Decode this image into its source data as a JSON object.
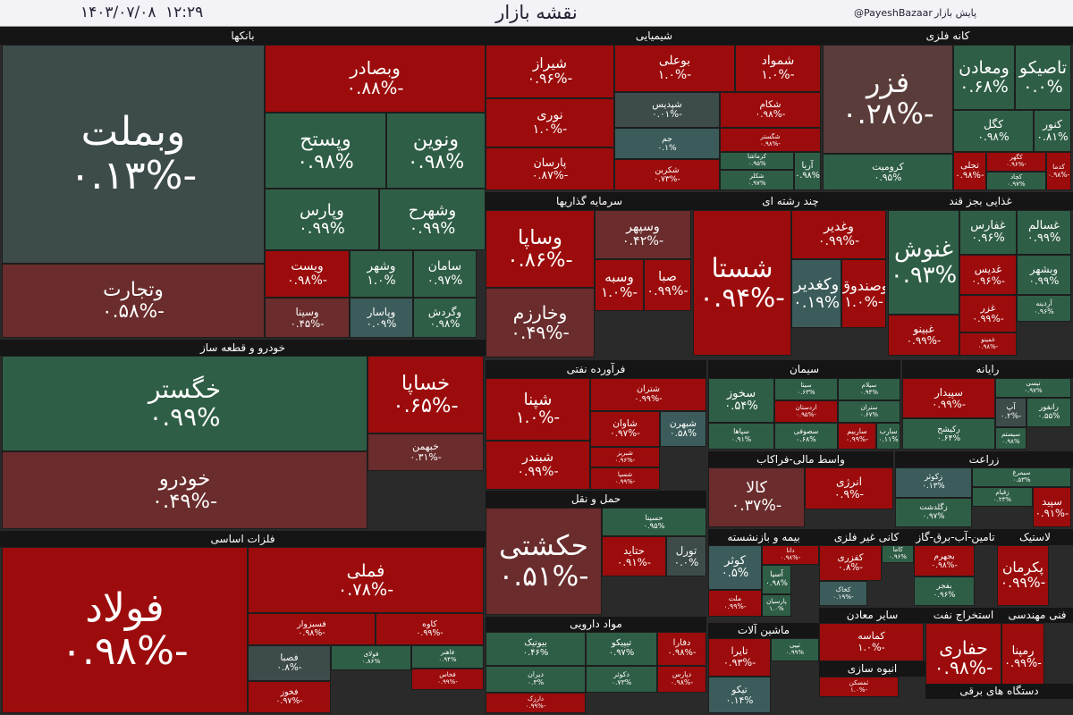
{
  "header": {
    "date": "۱۴۰۳/۰۷/۰۸",
    "time": "۱۲:۲۹",
    "title": "نقشه بازار",
    "handle": "@PayeshBazaar",
    "brand": "پایش بازار"
  },
  "sectors": [
    {
      "name": "بانکها",
      "tiles": [
        {
          "symbol": "وبملت",
          "change": "-۰.۱۳%"
        },
        {
          "symbol": "وتجارت",
          "change": "-۰.۵۸%"
        },
        {
          "symbol": "وبصادر",
          "change": "-۰.۸۸%"
        },
        {
          "symbol": "وپستح",
          "change": "۰.۹۸%"
        },
        {
          "symbol": "ونوین",
          "change": "۰.۹۸%"
        },
        {
          "symbol": "وپارس",
          "change": "۰.۹۹%"
        },
        {
          "symbol": "وشهرح",
          "change": "۰.۹۹%"
        },
        {
          "symbol": "ویست",
          "change": "-۰.۹۸%"
        },
        {
          "symbol": "وسینا",
          "change": "-۰.۴۵%"
        },
        {
          "symbol": "وشهر",
          "change": "۱.۰%"
        },
        {
          "symbol": "وپاسار",
          "change": "۰.۰۹%"
        },
        {
          "symbol": "سامان",
          "change": "۰.۹۷%"
        },
        {
          "symbol": "وگردش",
          "change": "۰.۹۸%"
        }
      ]
    },
    {
      "name": "شیمیایی",
      "tiles": [
        {
          "symbol": "شیراز",
          "change": "-۰.۹۶%"
        },
        {
          "symbol": "نوری",
          "change": "-۱.۰%"
        },
        {
          "symbol": "پارسان",
          "change": "-۰.۸۷%"
        },
        {
          "symbol": "بوعلی",
          "change": "-۱.۰%"
        },
        {
          "symbol": "شمواد",
          "change": "-۱.۰%"
        },
        {
          "symbol": "شپدیس",
          "change": "-۰.۰۱%"
        },
        {
          "symbol": "جم",
          "change": "۰.۱%"
        },
        {
          "symbol": "شکربن",
          "change": "-۰.۷۳%"
        },
        {
          "symbol": "شکام",
          "change": "-۰.۹۸%"
        },
        {
          "symbol": "شگستر",
          "change": "-۰.۹۸%"
        },
        {
          "symbol": "کرماشا",
          "change": "۰.۹۵%"
        },
        {
          "symbol": "شکلر",
          "change": "۰.۹۷%"
        },
        {
          "symbol": "آریا",
          "change": "۰.۹۸%"
        }
      ]
    },
    {
      "name": "کانه فلزی",
      "tiles": [
        {
          "symbol": "فزر",
          "change": "-۰.۲۸%"
        },
        {
          "symbol": "کرومیت",
          "change": "۰.۹۵%"
        },
        {
          "symbol": "ومعادن",
          "change": "۰.۶۸%"
        },
        {
          "symbol": "تاصیکو",
          "change": "۰.۰%"
        },
        {
          "symbol": "کگل",
          "change": "۰.۹۸%"
        },
        {
          "symbol": "کنور",
          "change": "۰.۸۱%"
        },
        {
          "symbol": "تجلی",
          "change": "-۰.۹۸%"
        },
        {
          "symbol": "کگهر",
          "change": "-۰.۹۶%"
        },
        {
          "symbol": "کچاد",
          "change": "۰.۹۷%"
        },
        {
          "symbol": "کدما",
          "change": "-۰.۹۸%"
        }
      ]
    },
    {
      "name": "سرمایه گذاریها",
      "tiles": [
        {
          "symbol": "وساپا",
          "change": "-۰.۸۶%"
        },
        {
          "symbol": "وخارزم",
          "change": "-۰.۴۹%"
        },
        {
          "symbol": "وسپهر",
          "change": "-۰.۴۲%"
        },
        {
          "symbol": "وسبه",
          "change": "-۱.۰%"
        },
        {
          "symbol": "صبا",
          "change": "-۰.۹۹%"
        }
      ]
    },
    {
      "name": "چند رشته ای",
      "tiles": [
        {
          "symbol": "شستا",
          "change": "-۰.۹۴%"
        },
        {
          "symbol": "وغدیر",
          "change": "-۰.۹۹%"
        },
        {
          "symbol": "وکغدیر",
          "change": "۰.۱۹%"
        },
        {
          "symbol": "وصندوق",
          "change": "-۱.۰%"
        }
      ]
    },
    {
      "name": "غذایی بجز قند",
      "tiles": [
        {
          "symbol": "غنوش",
          "change": "۰.۹۳%"
        },
        {
          "symbol": "غبینو",
          "change": "-۰.۹۹%"
        },
        {
          "symbol": "غفارس",
          "change": "۰.۹۶%"
        },
        {
          "symbol": "غسالم",
          "change": "۰.۹۹%"
        },
        {
          "symbol": "غدیس",
          "change": "-۰.۹۶%"
        },
        {
          "symbol": "وبشهر",
          "change": "۰.۹۹%"
        },
        {
          "symbol": "غزر",
          "change": "-۰.۹۹%"
        },
        {
          "symbol": "آردینه",
          "change": "۰.۹۶%"
        },
        {
          "symbol": "غمینو",
          "change": "-۰.۹۸%"
        }
      ]
    },
    {
      "name": "خودرو و قطعه ساز",
      "tiles": [
        {
          "symbol": "خگستر",
          "change": "۰.۹۹%"
        },
        {
          "symbol": "خودرو",
          "change": "-۰.۴۹%"
        },
        {
          "symbol": "خساپا",
          "change": "-۰.۶۵%"
        },
        {
          "symbol": "خبهمن",
          "change": "-۰.۳۱%"
        }
      ]
    },
    {
      "name": "فرآورده نفتی",
      "tiles": [
        {
          "symbol": "شپنا",
          "change": "-۱.۰%"
        },
        {
          "symbol": "شبندر",
          "change": "-۰.۹۹%"
        },
        {
          "symbol": "شتران",
          "change": "-۰.۹۹%"
        },
        {
          "symbol": "شاوان",
          "change": "-۰.۹۷%"
        },
        {
          "symbol": "شبهرن",
          "change": "۰.۵۸%"
        },
        {
          "symbol": "شبریز",
          "change": "-۰.۹۶%"
        },
        {
          "symbol": "شسپا",
          "change": "-۰.۹۹%"
        }
      ]
    },
    {
      "name": "سیمان",
      "tiles": [
        {
          "symbol": "سخوز",
          "change": "۰.۵۴%"
        },
        {
          "symbol": "سپاها",
          "change": "۰.۹۱%"
        },
        {
          "symbol": "سیتا",
          "change": "۰.۶۳%"
        },
        {
          "symbol": "اردستان",
          "change": "-۰.۹۵%"
        },
        {
          "symbol": "سصوفی",
          "change": "۰.۶۸%"
        },
        {
          "symbol": "سیلام",
          "change": "۰.۹۴%"
        },
        {
          "symbol": "ستران",
          "change": "۰.۶۷%"
        },
        {
          "symbol": "ساربیم",
          "change": "-۰.۹۹%"
        },
        {
          "symbol": "سارب",
          "change": "۰.۱۱%"
        }
      ]
    },
    {
      "name": "رایانه",
      "tiles": [
        {
          "symbol": "سپیدار",
          "change": "-۰.۹۹%"
        },
        {
          "symbol": "رکیشح",
          "change": "۰.۶۴%"
        },
        {
          "symbol": "تیسی",
          "change": "۰.۹۷%"
        },
        {
          "symbol": "آپ",
          "change": "-۰.۲%"
        },
        {
          "symbol": "رانفور",
          "change": "۰.۵۵%"
        },
        {
          "symbol": "سیستم",
          "change": "۰.۹۸%"
        }
      ]
    },
    {
      "name": "واسط مالی-فراکاب",
      "tiles": [
        {
          "symbol": "کالا",
          "change": "-۰.۳۷%"
        },
        {
          "symbol": "انرژی",
          "change": "-۰.۹%"
        }
      ]
    },
    {
      "name": "زراعت",
      "tiles": [
        {
          "symbol": "زکوثر",
          "change": "۰.۱۳%"
        },
        {
          "symbol": "زگلدشت",
          "change": "۰.۹۷%"
        },
        {
          "symbol": "سیمرغ",
          "change": "۰.۵۳%"
        },
        {
          "symbol": "زقیام",
          "change": "۰.۲۳%"
        },
        {
          "symbol": "سپید",
          "change": "-۰.۹۱%"
        }
      ]
    },
    {
      "name": "فلزات اساسی",
      "tiles": [
        {
          "symbol": "فولاد",
          "change": "-۰.۹۸%"
        },
        {
          "symbol": "فملی",
          "change": "-۰.۷۸%"
        },
        {
          "symbol": "فسبزوار",
          "change": "-۰.۹۸%"
        },
        {
          "symbol": "کاوه",
          "change": "-۰.۹۹%"
        },
        {
          "symbol": "فصبا",
          "change": "-۰.۸%"
        },
        {
          "symbol": "فولای",
          "change": "۰.۸۶%"
        },
        {
          "symbol": "فاهنر",
          "change": "۰.۹۴%"
        },
        {
          "symbol": "فخوز",
          "change": "-۰.۹۷%"
        },
        {
          "symbol": "فخاس",
          "change": "-۰.۹۹%"
        }
      ]
    },
    {
      "name": "حمل و نقل",
      "tiles": [
        {
          "symbol": "حکشتی",
          "change": "-۰.۵۱%"
        },
        {
          "symbol": "حسینا",
          "change": "۰.۹۵%"
        },
        {
          "symbol": "حتاید",
          "change": "-۰.۹۱%"
        },
        {
          "symbol": "تورل",
          "change": "۰.۰%"
        }
      ]
    },
    {
      "name": "مواد دارویی",
      "tiles": [
        {
          "symbol": "بیوتیک",
          "change": "۰.۴۶%"
        },
        {
          "symbol": "دیران",
          "change": "۰.۳%"
        },
        {
          "symbol": "دارزک",
          "change": "-۰.۹۹%"
        },
        {
          "symbol": "تیپیکو",
          "change": "۰.۹۷%"
        },
        {
          "symbol": "دکوثر",
          "change": "۰.۷۳%"
        },
        {
          "symbol": "دفارا",
          "change": "-۰.۹۸%"
        },
        {
          "symbol": "دپارس",
          "change": "-۰.۹۸%"
        }
      ]
    },
    {
      "name": "بیمه و بازنشسته",
      "tiles": [
        {
          "symbol": "کوثر",
          "change": "۰.۵%"
        },
        {
          "symbol": "ملت",
          "change": "-۰.۹۹%"
        },
        {
          "symbol": "دانا",
          "change": "-۰.۹۸%"
        },
        {
          "symbol": "آسیا",
          "change": "۰.۹۸%"
        },
        {
          "symbol": "پارسیان",
          "change": "۱.۰%"
        }
      ]
    },
    {
      "name": "کانی غیر فلزی",
      "tiles": [
        {
          "symbol": "کفزری",
          "change": "-۰.۸%"
        },
        {
          "symbol": "کاما",
          "change": "۰.۹۶%"
        },
        {
          "symbol": "کخاک",
          "change": "-۰.۱۹%"
        }
      ]
    },
    {
      "name": "تامین-آب-برق-گاز",
      "tiles": [
        {
          "symbol": "بجهرم",
          "change": "-۰.۹۸%"
        },
        {
          "symbol": "بفجر",
          "change": "۰.۹۶%"
        }
      ]
    },
    {
      "name": "لاستیک",
      "tiles": [
        {
          "symbol": "پکرمان",
          "change": "-۰.۹۹%"
        }
      ]
    },
    {
      "name": "سایر معادن",
      "tiles": [
        {
          "symbol": "کماسه",
          "change": "-۱.۰%"
        }
      ]
    },
    {
      "name": "انبوه سازی",
      "tiles": [
        {
          "symbol": "ثمسکن",
          "change": "-۱.۰%"
        }
      ]
    },
    {
      "name": "ماشین آلات",
      "tiles": [
        {
          "symbol": "تایرا",
          "change": "-۰.۹۳%"
        },
        {
          "symbol": "تیپی",
          "change": "۰.۹۹%"
        },
        {
          "symbol": "تیکو",
          "change": "۰.۱۴%"
        }
      ]
    },
    {
      "name": "استخراج نفت",
      "tiles": [
        {
          "symbol": "حفاری",
          "change": "-۰.۹۸%"
        }
      ]
    },
    {
      "name": "فنی مهندسی",
      "tiles": [
        {
          "symbol": "رمپنا",
          "change": "-۰.۹۹%"
        }
      ]
    },
    {
      "name": "دستگاه های برقی",
      "tiles": []
    }
  ]
}
